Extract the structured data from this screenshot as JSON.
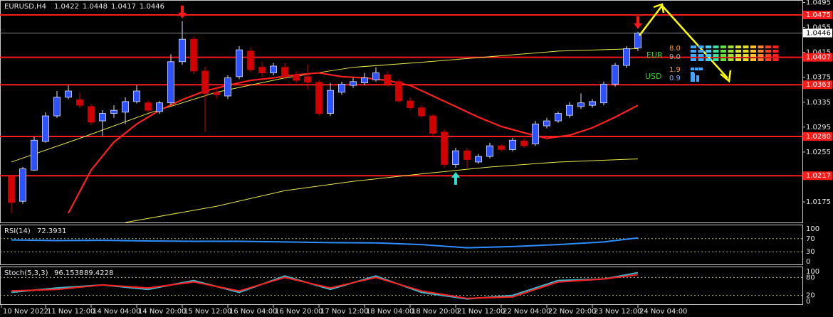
{
  "chart_data": {
    "type": "candlestick",
    "title": "EURUSD,H4",
    "colors": {
      "up": "#2f52ff",
      "down": "#d40000",
      "level": "#ff1a1a"
    },
    "open": [
      1.0216,
      1.0176,
      1.0226,
      1.0272,
      1.0313,
      1.0343,
      1.0339,
      1.0328,
      1.0305,
      1.0317,
      1.0319,
      1.0336,
      1.0334,
      1.032,
      1.0334,
      1.04,
      1.0436,
      1.0385,
      1.0351,
      1.0345,
      1.0376,
      1.0417,
      1.0391,
      1.0382,
      1.0391,
      1.0379,
      1.0376,
      1.0367,
      1.0317,
      1.0351,
      1.0362,
      1.0366,
      1.0371,
      1.0379,
      1.0368,
      1.0337,
      1.0326,
      1.0313,
      1.0287,
      1.0235,
      1.0257,
      1.0239,
      1.0248,
      1.0265,
      1.0259,
      1.0273,
      1.0268,
      1.0297,
      1.0305,
      1.0314,
      1.0328,
      1.033,
      1.0334,
      1.0364,
      1.0394,
      1.0422
    ],
    "high": [
      1.0219,
      1.0231,
      1.0279,
      1.0319,
      1.0353,
      1.0362,
      1.035,
      1.0332,
      1.0322,
      1.033,
      1.0343,
      1.0362,
      1.0338,
      1.0337,
      1.0412,
      1.0465,
      1.044,
      1.0392,
      1.036,
      1.0378,
      1.0425,
      1.0423,
      1.04,
      1.0398,
      1.0398,
      1.0385,
      1.0396,
      1.0371,
      1.0366,
      1.0368,
      1.0374,
      1.0382,
      1.0391,
      1.0385,
      1.0372,
      1.0343,
      1.033,
      1.0316,
      1.0292,
      1.0262,
      1.0262,
      1.0252,
      1.027,
      1.0268,
      1.0278,
      1.0277,
      1.0305,
      1.031,
      1.032,
      1.0335,
      1.0349,
      1.034,
      1.0368,
      1.0398,
      1.0425,
      1.0448
    ],
    "low": [
      1.0157,
      1.0172,
      1.0225,
      1.027,
      1.031,
      1.034,
      1.0326,
      1.0298,
      1.028,
      1.031,
      1.03,
      1.0333,
      1.0318,
      1.0316,
      1.033,
      1.0395,
      1.038,
      1.0287,
      1.034,
      1.034,
      1.0372,
      1.0383,
      1.0376,
      1.0378,
      1.0371,
      1.0366,
      1.0355,
      1.0313,
      1.0313,
      1.0347,
      1.0358,
      1.0362,
      1.0368,
      1.036,
      1.0334,
      1.0322,
      1.031,
      1.028,
      1.023,
      1.023,
      1.0229,
      1.0236,
      1.0245,
      1.0256,
      1.0256,
      1.0262,
      1.0265,
      1.0293,
      1.0302,
      1.031,
      1.0324,
      1.0326,
      1.033,
      1.036,
      1.039,
      1.0417
    ],
    "close": [
      1.0174,
      1.0228,
      1.0274,
      1.0313,
      1.0343,
      1.0353,
      1.033,
      1.0303,
      1.0317,
      1.0322,
      1.0336,
      1.0353,
      1.0322,
      1.0334,
      1.04,
      1.0436,
      1.0385,
      1.0349,
      1.0347,
      1.0374,
      1.0419,
      1.0387,
      1.0382,
      1.0393,
      1.0376,
      1.037,
      1.0367,
      1.0317,
      1.0354,
      1.0364,
      1.0368,
      1.0374,
      1.0382,
      1.0364,
      1.0337,
      1.0326,
      1.0313,
      1.0285,
      1.0235,
      1.0257,
      1.0243,
      1.0248,
      1.0265,
      1.0259,
      1.0274,
      1.0265,
      1.03,
      1.0305,
      1.0317,
      1.033,
      1.0334,
      1.0336,
      1.0364,
      1.0394,
      1.0421,
      1.0446
    ],
    "ylim": [
      1.0142,
      1.0499
    ],
    "yticks": [
      1.0495,
      1.0455,
      1.0415,
      1.0375,
      1.0335,
      {
        "value": 1.0295,
        "label": "1.0295"
      },
      1.0255,
      1.0215,
      1.0175
    ],
    "levels": [
      1.0475,
      1.0407,
      1.0363,
      {
        "value": 1.028,
        "label": "1.0280"
      },
      1.0217
    ],
    "current_price": 1.0446,
    "indicators": [
      {
        "color": "#e8e84a",
        "x": [
          0,
          6,
          12,
          18,
          24,
          30,
          36,
          42,
          48,
          55
        ],
        "values": [
          1.0239,
          1.0277,
          1.0317,
          1.0351,
          1.0374,
          1.0391,
          1.0399,
          1.0408,
          1.0417,
          1.0421
        ]
      },
      {
        "color": "#e8e84a",
        "x": [
          10,
          18,
          24,
          30,
          36,
          42,
          48,
          55
        ],
        "values": [
          1.0142,
          1.0168,
          1.0193,
          1.0208,
          1.022,
          1.0231,
          1.0239,
          1.0244
        ]
      },
      {
        "color": "#ff2020",
        "x": [
          5,
          7,
          9,
          11,
          13,
          15,
          17,
          19,
          21,
          23,
          25,
          27,
          29,
          31,
          33,
          35,
          37,
          39,
          41,
          43,
          45,
          47,
          49,
          51,
          53,
          55
        ],
        "values": [
          1.0157,
          1.0226,
          1.0271,
          1.03,
          1.0322,
          1.0339,
          1.0353,
          1.0362,
          1.037,
          1.0374,
          1.0379,
          1.0382,
          1.0376,
          1.0374,
          1.037,
          1.0362,
          1.0345,
          1.0328,
          1.0311,
          1.0296,
          1.0286,
          1.0277,
          1.0282,
          1.0294,
          1.0311,
          1.033
        ]
      }
    ],
    "time_labels": [
      "10 Nov 2022",
      "11 Nov 12:00",
      "14 Nov 04:00",
      "14 Nov 20:00",
      "15 Nov 12:00",
      "16 Nov 04:00",
      "16 Nov 20:00",
      "17 Nov 12:00",
      "18 Nov 04:00",
      "18 Nov 20:00",
      "21 Nov 12:00",
      "22 Nov 04:00",
      "22 Nov 20:00",
      "23 Nov 12:00",
      "24 Nov 04:00"
    ],
    "rsi": {
      "label": "RSI(14)",
      "ylim": [
        0,
        100
      ],
      "yticks": [
        100,
        70,
        30,
        0
      ],
      "series": [
        {
          "color": "#2f8fff",
          "x": [
            0,
            4,
            8,
            12,
            16,
            20,
            24,
            28,
            32,
            36,
            40,
            44,
            48,
            52,
            55
          ],
          "values": [
            66,
            64,
            65,
            63,
            62,
            62,
            60,
            58,
            57,
            52,
            42,
            46,
            52,
            60,
            72.3931
          ]
        }
      ]
    },
    "stoch": {
      "label": "Stoch(5,3,3)",
      "ylim": [
        0,
        100
      ],
      "yticks": [
        100,
        80,
        20,
        0
      ],
      "series": [
        {
          "color": "#3fb6c8",
          "x": [
            0,
            4,
            8,
            12,
            16,
            20,
            24,
            28,
            32,
            36,
            40,
            44,
            48,
            52,
            55
          ],
          "values": [
            30,
            45,
            55,
            40,
            70,
            30,
            85,
            40,
            85,
            30,
            8,
            20,
            70,
            75,
            96.1538
          ]
        },
        {
          "color": "#ff2020",
          "x": [
            0,
            4,
            8,
            12,
            16,
            20,
            24,
            28,
            32,
            36,
            40,
            44,
            48,
            52,
            55
          ],
          "values": [
            35,
            40,
            55,
            45,
            65,
            35,
            80,
            45,
            80,
            35,
            10,
            15,
            65,
            75,
            89.4228
          ]
        }
      ]
    }
  },
  "widget": {
    "eur": {
      "name": "EUR",
      "a": "8.0",
      "b": "9.0"
    },
    "usd": {
      "name": "USD",
      "a": "1.9",
      "b": "0.9"
    }
  }
}
